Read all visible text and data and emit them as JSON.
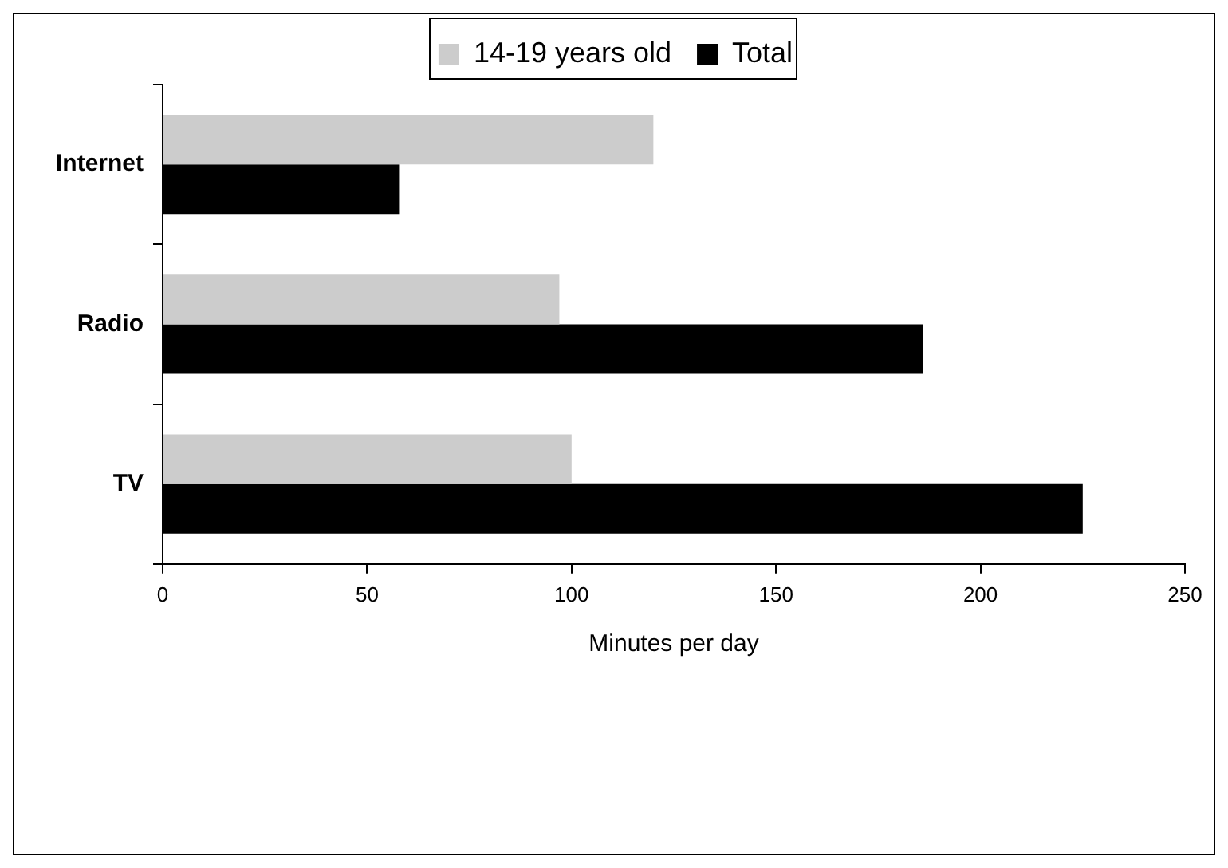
{
  "chart_data": {
    "type": "bar",
    "orientation": "horizontal",
    "xlabel": "Minutes per day",
    "categories": [
      "Internet",
      "Radio",
      "TV"
    ],
    "series": [
      {
        "name": "14-19 years old",
        "color": "#cccccc",
        "values": [
          120,
          97,
          100
        ]
      },
      {
        "name": "Total",
        "color": "#000000",
        "values": [
          58,
          186,
          225
        ]
      }
    ],
    "xlim": [
      0,
      250
    ],
    "xticks": [
      0,
      50,
      100,
      150,
      200,
      250
    ],
    "grid": false,
    "legend": "top"
  }
}
